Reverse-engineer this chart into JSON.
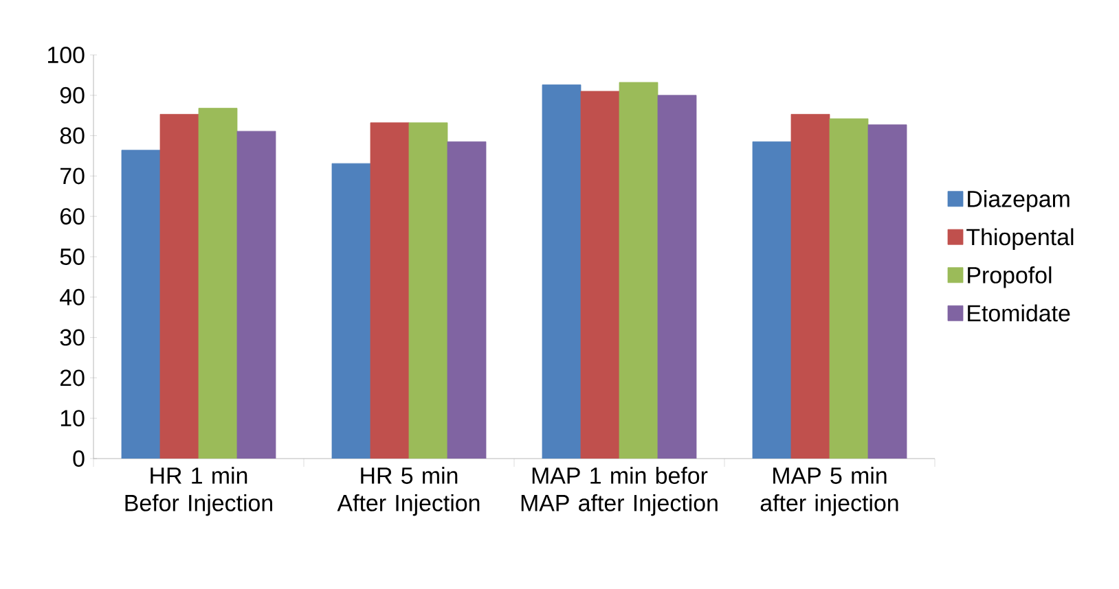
{
  "chart_data": {
    "type": "bar",
    "categories": [
      "HR 1 min Befor Injection",
      "HR 5 min After Injection",
      "MAP 1 min befor MAP after Injection",
      "MAP 5 min after injection"
    ],
    "series": [
      {
        "name": "Diazepam",
        "color": "#4f81bd",
        "values": [
          76.4,
          73.1,
          92.6,
          78.5
        ]
      },
      {
        "name": "Thiopental",
        "color": "#c0504d",
        "values": [
          85.3,
          83.2,
          91.0,
          85.3
        ]
      },
      {
        "name": "Propofol",
        "color": "#9bbb59",
        "values": [
          86.8,
          83.2,
          93.2,
          84.2
        ]
      },
      {
        "name": "Etomidate",
        "color": "#8064a2",
        "values": [
          81.1,
          78.5,
          90.0,
          82.7
        ]
      }
    ],
    "ylim": [
      0,
      100
    ],
    "yticks": [
      0,
      10,
      20,
      30,
      40,
      50,
      60,
      70,
      80,
      90,
      100
    ],
    "legend": "right"
  }
}
